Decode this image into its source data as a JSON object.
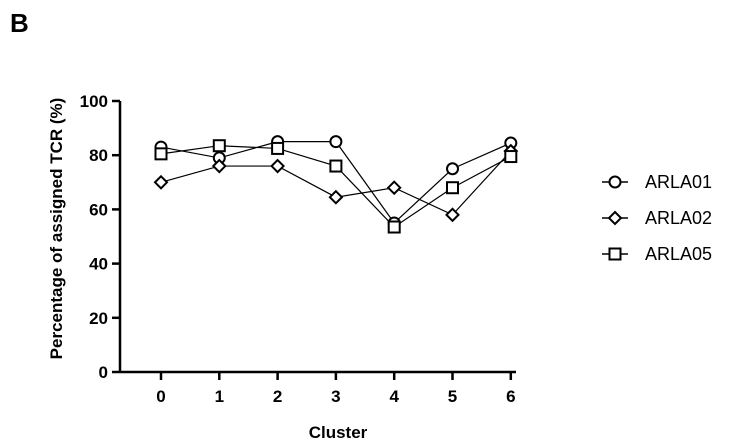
{
  "panel_label": "B",
  "chart_data": {
    "type": "line",
    "title": "",
    "xlabel": "Cluster",
    "ylabel": "Percentage of assigned TCR (%)",
    "x": [
      0,
      1,
      2,
      3,
      4,
      5,
      6
    ],
    "x_tick_labels": [
      "0",
      "1",
      "2",
      "3",
      "4",
      "5",
      "6"
    ],
    "ylim": [
      0,
      100
    ],
    "y_ticks": [
      0,
      20,
      40,
      60,
      80,
      100
    ],
    "y_tick_labels": [
      "0",
      "20",
      "40",
      "60",
      "80",
      "100"
    ],
    "grid": false,
    "legend_position": "right",
    "series": [
      {
        "name": "ARLA01",
        "marker": "circle",
        "values": [
          83,
          79,
          85,
          85,
          55,
          75,
          84.5
        ]
      },
      {
        "name": "ARLA02",
        "marker": "diamond",
        "values": [
          70,
          76,
          76,
          64.5,
          68,
          58,
          81.5
        ]
      },
      {
        "name": "ARLA05",
        "marker": "square",
        "values": [
          80.5,
          83.5,
          82.5,
          76,
          53.5,
          68,
          79.5
        ]
      }
    ]
  }
}
